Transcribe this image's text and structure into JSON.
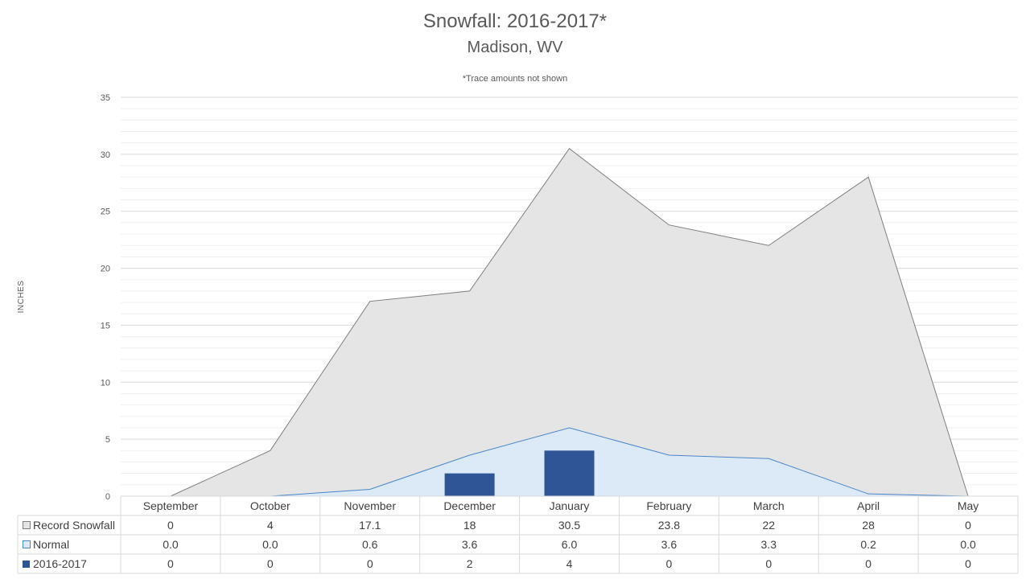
{
  "chart_data": {
    "type": "area",
    "title": "Snowfall: 2016-2017*",
    "subtitle": "Madison, WV",
    "note": "*Trace amounts not shown",
    "ylabel": "INCHES",
    "ylim": [
      0,
      35
    ],
    "yticks": [
      0,
      5,
      10,
      15,
      20,
      25,
      30,
      35
    ],
    "grid": true,
    "legend": "data-table-left",
    "categories": [
      "September",
      "October",
      "November",
      "December",
      "January",
      "February",
      "March",
      "April",
      "May"
    ],
    "series": [
      {
        "name": "Record Snowfall",
        "kind": "area",
        "color": "#e5e5e5",
        "stroke": "#7f7f7f",
        "values": [
          0,
          4,
          17.1,
          18,
          30.5,
          23.8,
          22,
          28,
          0
        ],
        "labels": [
          "0",
          "4",
          "17.1",
          "18",
          "30.5",
          "23.8",
          "22",
          "28",
          "0"
        ]
      },
      {
        "name": "Normal",
        "kind": "area",
        "color": "#dce9f6",
        "stroke": "#4a86c8",
        "values": [
          0.0,
          0.0,
          0.6,
          3.6,
          6.0,
          3.6,
          3.3,
          0.2,
          0.0
        ],
        "labels": [
          "0.0",
          "0.0",
          "0.6",
          "3.6",
          "6.0",
          "3.6",
          "3.3",
          "0.2",
          "0.0"
        ]
      },
      {
        "name": "2016-2017",
        "kind": "bar",
        "color": "#2f5597",
        "stroke": "#2f5597",
        "values": [
          0,
          0,
          0,
          2,
          4,
          0,
          0,
          0,
          0
        ],
        "labels": [
          "0",
          "0",
          "0",
          "2",
          "4",
          "0",
          "0",
          "0",
          "0"
        ]
      }
    ]
  }
}
